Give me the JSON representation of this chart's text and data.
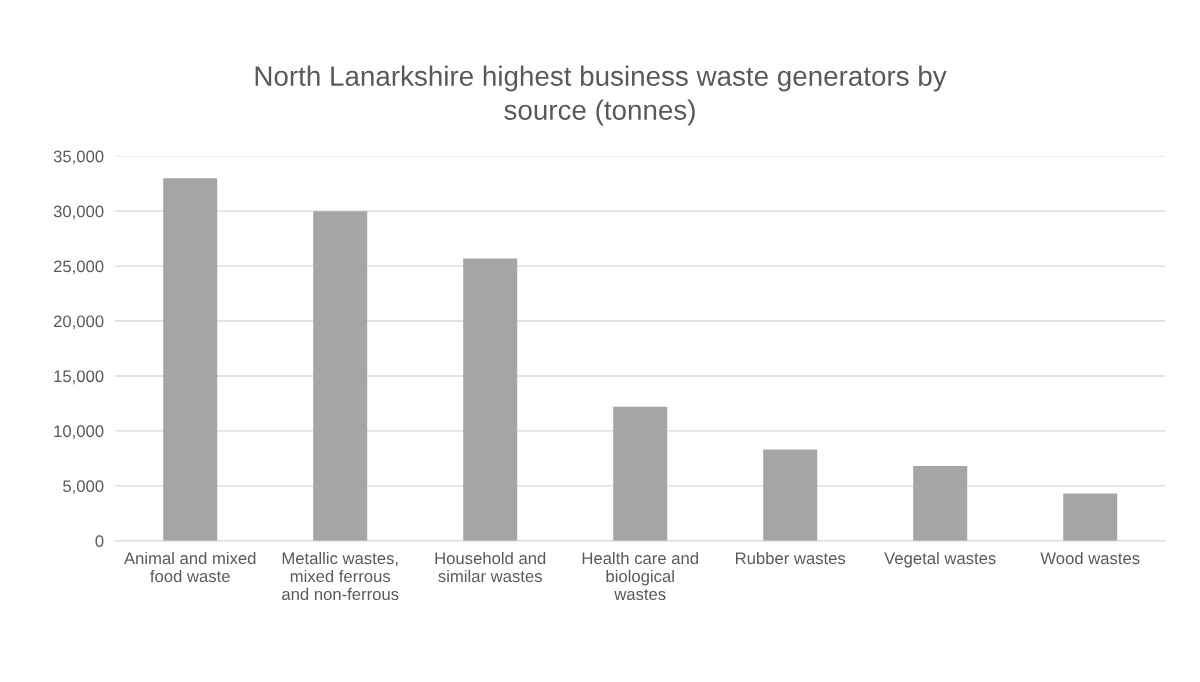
{
  "chart_data": {
    "type": "bar",
    "title": "North Lanarkshire highest business waste generators by source (tonnes)",
    "categories": [
      "Animal and mixed food waste",
      "Metallic wastes, mixed ferrous and non-ferrous",
      "Household and similar wastes",
      "Health care and biological wastes",
      "Rubber wastes",
      "Vegetal wastes",
      "Wood wastes"
    ],
    "values": [
      33000,
      30000,
      25700,
      12200,
      8300,
      6800,
      4300
    ],
    "color": "#a5a5a5",
    "ylim": [
      0,
      35000
    ],
    "yticks": [
      {
        "value": 0,
        "label": "0"
      },
      {
        "value": 5000,
        "label": "5,000"
      },
      {
        "value": 10000,
        "label": "10,000"
      },
      {
        "value": 15000,
        "label": "15,000"
      },
      {
        "value": 20000,
        "label": "20,000"
      },
      {
        "value": 25000,
        "label": "25,000"
      },
      {
        "value": 30000,
        "label": "30,000"
      },
      {
        "value": 35000,
        "label": "35,000"
      }
    ],
    "grid": "y"
  }
}
